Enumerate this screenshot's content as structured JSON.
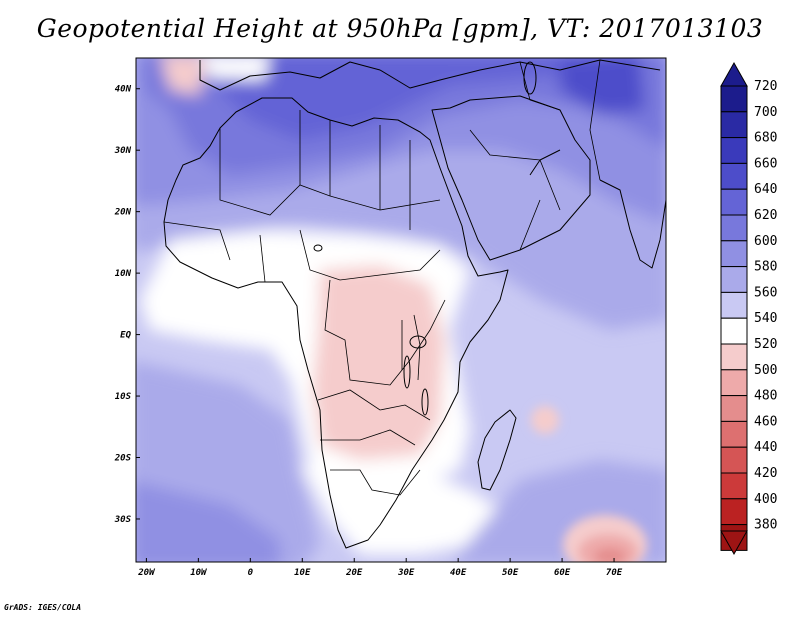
{
  "title": "Geopotential Height at 950hPa [gpm], VT: 2017013103",
  "footer": "GrADS: IGES/COLA",
  "map": {
    "lon_range": [
      -22,
      80
    ],
    "lat_range": [
      -37,
      45
    ],
    "x_ticks": [
      {
        "lon": -20,
        "label": "20W"
      },
      {
        "lon": -10,
        "label": "10W"
      },
      {
        "lon": 0,
        "label": "0"
      },
      {
        "lon": 10,
        "label": "10E"
      },
      {
        "lon": 20,
        "label": "20E"
      },
      {
        "lon": 30,
        "label": "30E"
      },
      {
        "lon": 40,
        "label": "40E"
      },
      {
        "lon": 50,
        "label": "50E"
      },
      {
        "lon": 60,
        "label": "60E"
      },
      {
        "lon": 70,
        "label": "70E"
      }
    ],
    "y_ticks": [
      {
        "lat": 40,
        "label": "40N"
      },
      {
        "lat": 30,
        "label": "30N"
      },
      {
        "lat": 20,
        "label": "20N"
      },
      {
        "lat": 10,
        "label": "10N"
      },
      {
        "lat": 0,
        "label": "EQ"
      },
      {
        "lat": -10,
        "label": "10S"
      },
      {
        "lat": -20,
        "label": "20S"
      },
      {
        "lat": -30,
        "label": "30S"
      }
    ]
  },
  "colorbar": {
    "levels": [
      "720",
      "700",
      "680",
      "660",
      "640",
      "620",
      "600",
      "580",
      "560",
      "540",
      "520",
      "500",
      "480",
      "460",
      "440",
      "420",
      "400",
      "380"
    ],
    "colors": [
      "#1c1c8c",
      "#2a2aa4",
      "#3a3abb",
      "#4d4dca",
      "#6464d6",
      "#7878dc",
      "#9090e3",
      "#aaaaea",
      "#c9c9f3",
      "#ffffff",
      "#f5cccc",
      "#eeaaaa",
      "#e48d8d",
      "#dd7070",
      "#d55555",
      "#cc3a3a",
      "#bb2222",
      "#9e1414"
    ]
  }
}
